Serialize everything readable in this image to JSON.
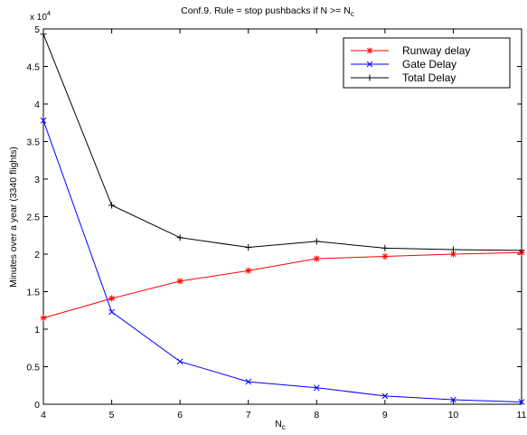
{
  "chart_data": {
    "type": "line",
    "title": "Conf.9. Rule = stop pushbacks if N >=  N",
    "title_subscript": "c",
    "xlabel": "N",
    "xlabel_subscript": "c",
    "ylabel": "Minutes over a year (3340 flights)",
    "y_multiplier_base": "x 10",
    "y_multiplier_exp": "4",
    "xlim": [
      4,
      11
    ],
    "ylim": [
      0,
      50000
    ],
    "x": [
      4,
      5,
      6,
      7,
      8,
      9,
      10,
      11
    ],
    "x_ticks": [
      "4",
      "5",
      "6",
      "7",
      "8",
      "9",
      "10",
      "11"
    ],
    "y_ticks": [
      0,
      5000,
      10000,
      15000,
      20000,
      25000,
      30000,
      35000,
      40000,
      45000,
      50000
    ],
    "y_tick_labels": [
      "0",
      "0.5",
      "1",
      "1.5",
      "2",
      "2.5",
      "3",
      "3.5",
      "4",
      "4.5",
      "5"
    ],
    "grid": false,
    "legend_position": "top-right",
    "series": [
      {
        "name": "Runway delay",
        "color": "#ff0000",
        "marker": "asterisk",
        "values": [
          11500,
          14100,
          16400,
          17800,
          19400,
          19700,
          20000,
          20200
        ]
      },
      {
        "name": "Gate Delay",
        "color": "#0000ff",
        "marker": "x",
        "values": [
          37800,
          12300,
          5700,
          3000,
          2200,
          1100,
          600,
          300
        ]
      },
      {
        "name": "Total Delay",
        "color": "#000000",
        "marker": "plus",
        "values": [
          49300,
          26500,
          22200,
          20900,
          21700,
          20800,
          20600,
          20500
        ]
      }
    ]
  }
}
